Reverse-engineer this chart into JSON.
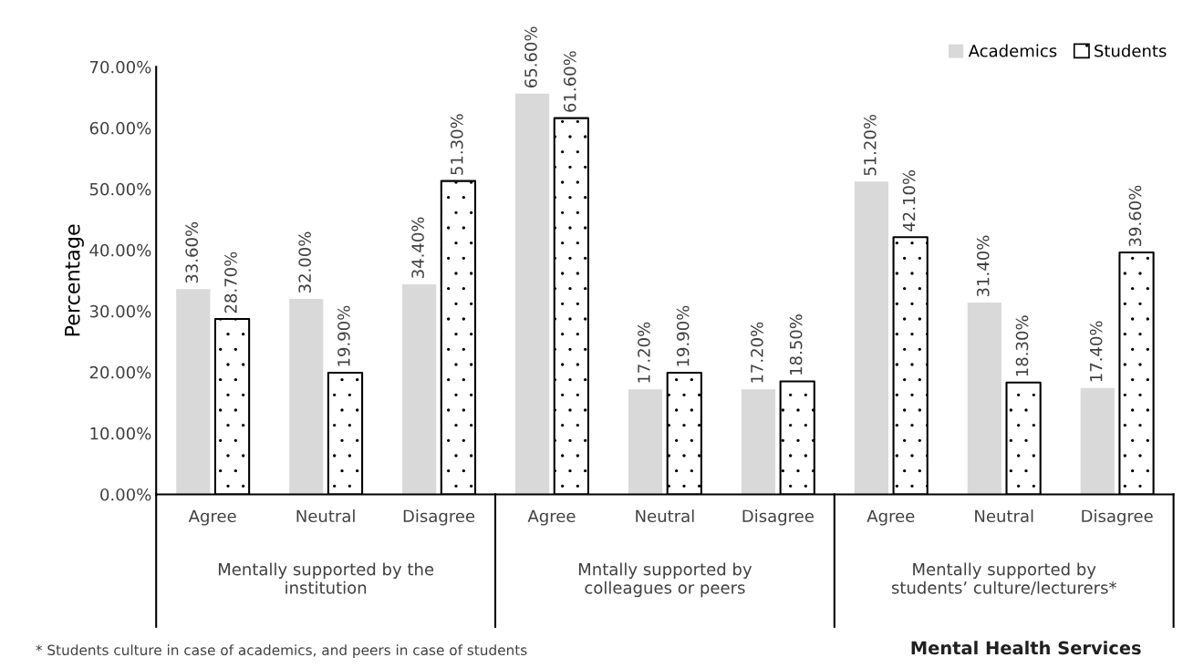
{
  "chart_data": {
    "type": "bar",
    "ylabel": "Percentage",
    "categories": [
      "Agree",
      "Neutral",
      "Disagree",
      "Agree",
      "Neutral",
      "Disagree",
      "Agree",
      "Neutral",
      "Disagree"
    ],
    "series": [
      {
        "name": "Academics",
        "color": "#d9d9d9",
        "values": [
          33.6,
          32.0,
          34.4,
          65.6,
          17.2,
          17.2,
          51.2,
          31.4,
          17.4
        ],
        "value_labels": [
          "33.60%",
          "32.00%",
          "34.40%",
          "65.60%",
          "17.20%",
          "17.20%",
          "51.20%",
          "31.40%",
          "17.40%"
        ]
      },
      {
        "name": "Students",
        "color": "#ffffff",
        "values": [
          28.7,
          19.9,
          51.3,
          61.6,
          19.9,
          18.5,
          42.1,
          18.3,
          39.6
        ],
        "value_labels": [
          "28.70%",
          "19.90%",
          "51.30%",
          "61.60%",
          "19.90%",
          "18.50%",
          "42.10%",
          "18.30%",
          "39.60%"
        ]
      }
    ],
    "ylim": [
      0,
      70
    ],
    "yticks": [
      {
        "value": 0,
        "label": "0.00%"
      },
      {
        "value": 10,
        "label": "10.00%"
      },
      {
        "value": 20,
        "label": "20.00%"
      },
      {
        "value": 30,
        "label": "30.00%"
      },
      {
        "value": 40,
        "label": "40.00%"
      },
      {
        "value": 50,
        "label": "50.00%"
      },
      {
        "value": 60,
        "label": "60.00%"
      },
      {
        "value": 70,
        "label": "70.00%"
      }
    ],
    "annotations": [
      "Mentally supported by the\ninstitution",
      "Mntally supported by\ncolleagues or peers",
      "Mentally supported by\nstudents’ culture/lecturers*",
      "* Students culture in case of academics, and peers in case of students",
      "Mental Health Services"
    ],
    "grid": false,
    "legend": "top right"
  }
}
